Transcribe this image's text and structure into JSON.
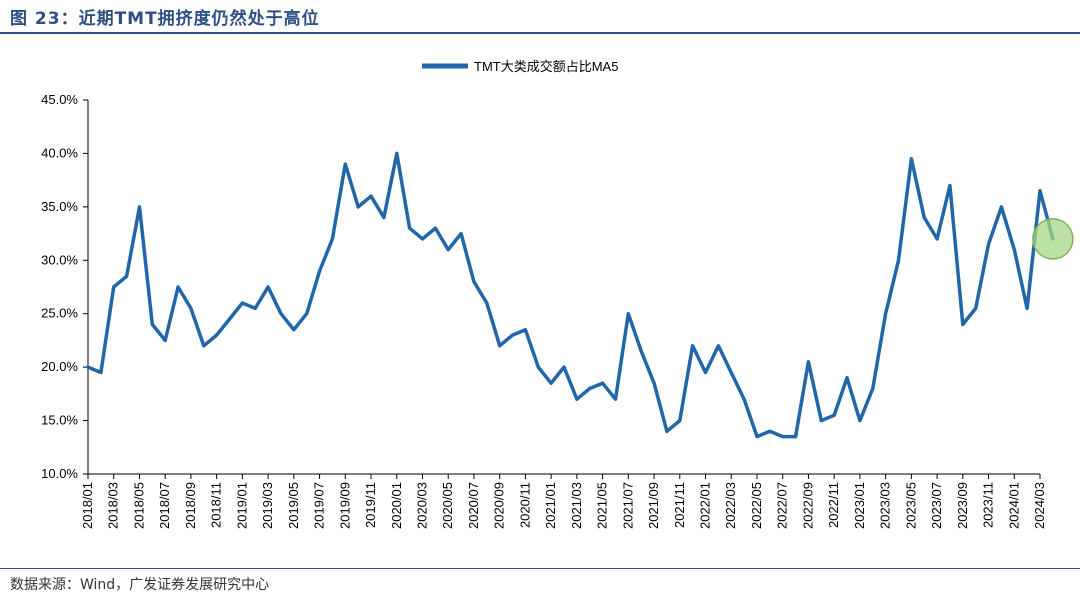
{
  "title": "图 23：近期TMT拥挤度仍然处于高位",
  "source": "数据来源：Wind，广发证券发展研究中心",
  "chart_data": {
    "type": "line",
    "title": "图 23：近期TMT拥挤度仍然处于高位",
    "xlabel": "",
    "ylabel": "",
    "ylim": [
      0.1,
      0.45
    ],
    "y_ticks": [
      0.1,
      0.15,
      0.2,
      0.25,
      0.3,
      0.35,
      0.4,
      0.45
    ],
    "y_tick_labels": [
      "10.0%",
      "15.0%",
      "20.0%",
      "25.0%",
      "30.0%",
      "35.0%",
      "40.0%",
      "45.0%"
    ],
    "x_tick_labels": [
      "2018/01",
      "2018/03",
      "2018/05",
      "2018/07",
      "2018/09",
      "2018/11",
      "2019/01",
      "2019/03",
      "2019/05",
      "2019/07",
      "2019/09",
      "2019/11",
      "2020/01",
      "2020/03",
      "2020/05",
      "2020/07",
      "2020/09",
      "2020/11",
      "2021/01",
      "2021/03",
      "2021/05",
      "2021/07",
      "2021/09",
      "2021/11",
      "2022/01",
      "2022/03",
      "2022/05",
      "2022/07",
      "2022/09",
      "2022/11",
      "2023/01",
      "2023/03",
      "2023/05",
      "2023/07",
      "2023/09",
      "2023/11",
      "2024/01",
      "2024/03"
    ],
    "x_range": [
      "2018/01",
      "2024/03"
    ],
    "grid": false,
    "legend_position": "top-center",
    "series": [
      {
        "name": "TMT大类成交额占比MA5",
        "color": "#2166a8",
        "x": [
          "2018/01",
          "2018/02",
          "2018/03",
          "2018/04",
          "2018/05",
          "2018/06",
          "2018/07",
          "2018/08",
          "2018/09",
          "2018/10",
          "2018/11",
          "2018/12",
          "2019/01",
          "2019/02",
          "2019/03",
          "2019/04",
          "2019/05",
          "2019/06",
          "2019/07",
          "2019/08",
          "2019/09",
          "2019/10",
          "2019/11",
          "2019/12",
          "2020/01",
          "2020/02",
          "2020/03",
          "2020/04",
          "2020/05",
          "2020/06",
          "2020/07",
          "2020/08",
          "2020/09",
          "2020/10",
          "2020/11",
          "2020/12",
          "2021/01",
          "2021/02",
          "2021/03",
          "2021/04",
          "2021/05",
          "2021/06",
          "2021/07",
          "2021/08",
          "2021/09",
          "2021/10",
          "2021/11",
          "2021/12",
          "2022/01",
          "2022/02",
          "2022/03",
          "2022/04",
          "2022/05",
          "2022/06",
          "2022/07",
          "2022/08",
          "2022/09",
          "2022/10",
          "2022/11",
          "2022/12",
          "2023/01",
          "2023/02",
          "2023/03",
          "2023/04",
          "2023/05",
          "2023/06",
          "2023/07",
          "2023/08",
          "2023/09",
          "2023/10",
          "2023/11",
          "2023/12",
          "2024/01",
          "2024/02",
          "2024/03",
          "2024/04"
        ],
        "values": [
          0.2,
          0.195,
          0.275,
          0.285,
          0.35,
          0.24,
          0.225,
          0.275,
          0.255,
          0.22,
          0.23,
          0.245,
          0.26,
          0.255,
          0.275,
          0.25,
          0.235,
          0.25,
          0.29,
          0.32,
          0.39,
          0.35,
          0.36,
          0.34,
          0.4,
          0.33,
          0.32,
          0.33,
          0.31,
          0.325,
          0.28,
          0.26,
          0.22,
          0.23,
          0.235,
          0.2,
          0.185,
          0.2,
          0.17,
          0.18,
          0.185,
          0.17,
          0.25,
          0.215,
          0.185,
          0.14,
          0.15,
          0.22,
          0.195,
          0.22,
          0.195,
          0.17,
          0.135,
          0.14,
          0.135,
          0.135,
          0.205,
          0.15,
          0.155,
          0.19,
          0.15,
          0.18,
          0.25,
          0.3,
          0.395,
          0.34,
          0.32,
          0.37,
          0.24,
          0.255,
          0.315,
          0.35,
          0.31,
          0.255,
          0.365,
          0.32
        ],
        "highlight_point": {
          "x": "2024/04",
          "value": 0.32
        }
      }
    ]
  }
}
